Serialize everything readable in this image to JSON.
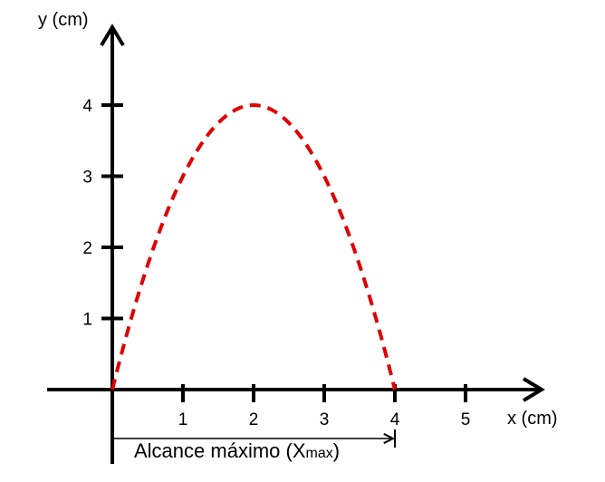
{
  "chart_data": {
    "type": "line",
    "xlabel": "x (cm)",
    "ylabel": "y (cm)",
    "xlim": [
      0,
      5
    ],
    "ylim": [
      0,
      4
    ],
    "x_ticks": [
      "1",
      "2",
      "3",
      "4",
      "5"
    ],
    "y_ticks": [
      "1",
      "2",
      "3",
      "4"
    ],
    "curve": {
      "shape": "parabola",
      "style": "dashed",
      "color": "#e00000",
      "vertex": [
        2,
        4
      ],
      "roots": [
        0,
        4
      ]
    },
    "annotation": {
      "text": "Alcance máximo (X",
      "sub": "max",
      "close": ")",
      "from": 0,
      "to": 4
    }
  }
}
